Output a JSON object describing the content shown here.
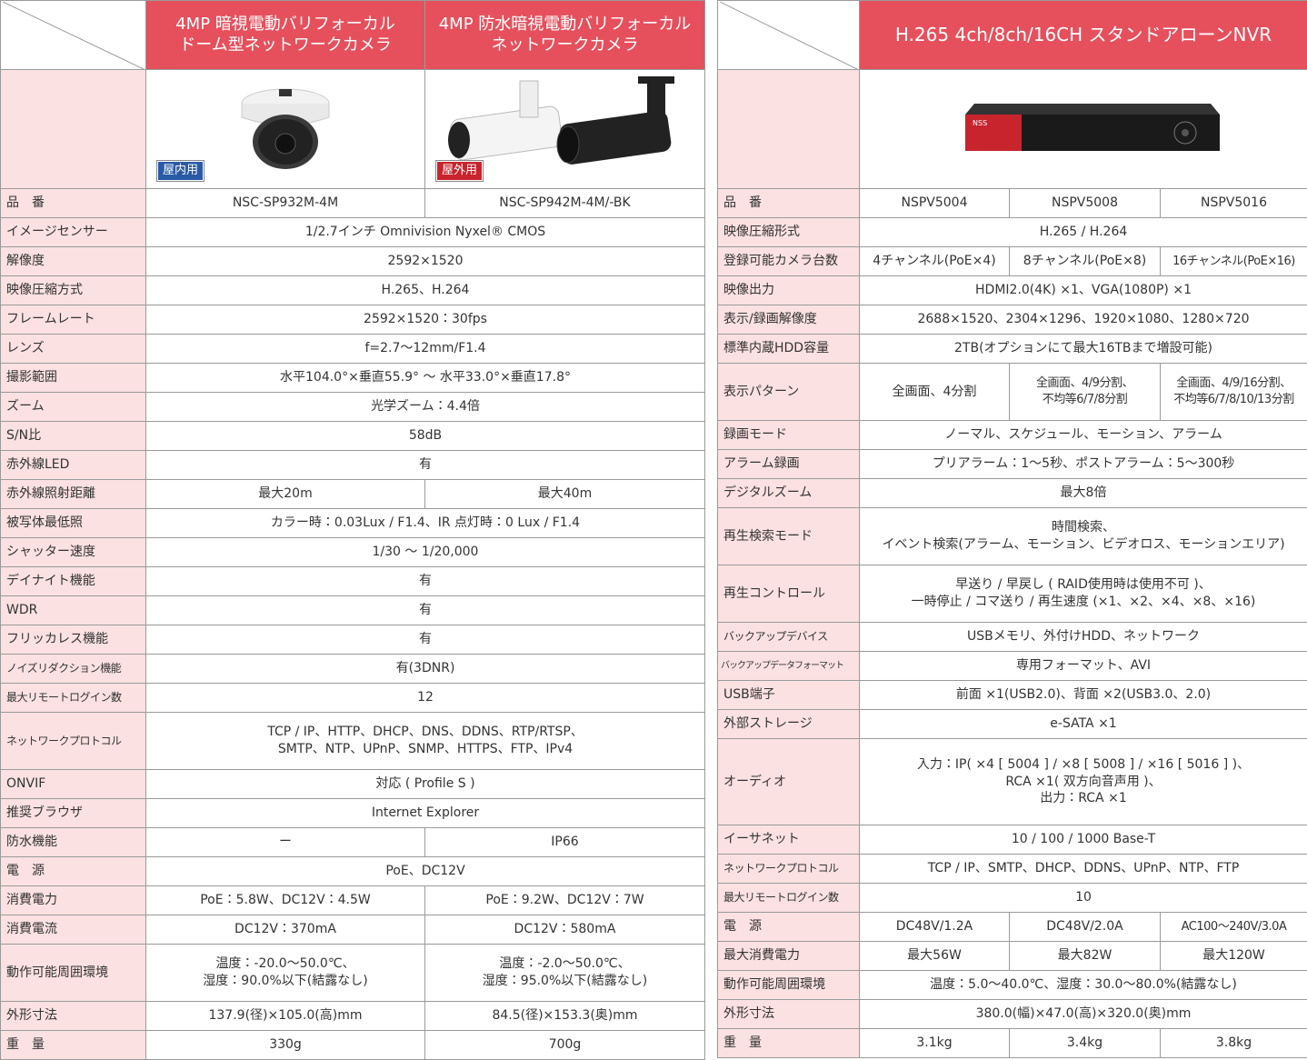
{
  "left_table": {
    "headers": [
      "4MP 暗視電動バリフォーカル\nドーム型ネットワークカメラ",
      "4MP 防水暗視電動バリフォーカル\nネットワークカメラ"
    ],
    "badges": [
      "屋内用",
      "屋外用"
    ],
    "rows": [
      {
        "label": "品　番",
        "cells": [
          "NSC-SP932M-4M",
          "NSC-SP942M-4M/-BK"
        ]
      },
      {
        "label": "イメージセンサー",
        "cells": [
          "1/2.7インチ Omnivision Nyxel® CMOS"
        ]
      },
      {
        "label": "解像度",
        "cells": [
          "2592×1520"
        ]
      },
      {
        "label": "映像圧縮方式",
        "cells": [
          "H.265、H.264"
        ]
      },
      {
        "label": "フレームレート",
        "cells": [
          "2592×1520：30fps"
        ]
      },
      {
        "label": "レンズ",
        "cells": [
          "f=2.7～12mm/F1.4"
        ]
      },
      {
        "label": "撮影範囲",
        "cells": [
          "水平104.0°×垂直55.9° ～ 水平33.0°×垂直17.8°"
        ]
      },
      {
        "label": "ズーム",
        "cells": [
          "光学ズーム：4.4倍"
        ]
      },
      {
        "label": "S/N比",
        "cells": [
          "58dB"
        ]
      },
      {
        "label": "赤外線LED",
        "cells": [
          "有"
        ]
      },
      {
        "label": "赤外線照射距離",
        "cells": [
          "最大20m",
          "最大40m"
        ]
      },
      {
        "label": "被写体最低照",
        "cells": [
          "カラー時：0.03Lux / F1.4、IR 点灯時：0 Lux / F1.4"
        ]
      },
      {
        "label": "シャッター速度",
        "cells": [
          "1/30 ～ 1/20,000"
        ]
      },
      {
        "label": "デイナイト機能",
        "cells": [
          "有"
        ]
      },
      {
        "label": "WDR",
        "cells": [
          "有"
        ]
      },
      {
        "label": "フリッカレス機能",
        "cells": [
          "有"
        ]
      },
      {
        "label": "ノイズリダクション機能",
        "cells": [
          "有(3DNR)"
        ]
      },
      {
        "label": "最大リモートログイン数",
        "cells": [
          "12"
        ]
      },
      {
        "label": "ネットワークプロトコル",
        "cells": [
          "TCP / IP、HTTP、DHCP、DNS、DDNS、RTP/RTSP、\nSMTP、NTP、UPnP、SNMP、HTTPS、FTP、IPv4"
        ]
      },
      {
        "label": "ONVIF",
        "cells": [
          "対応 ( Profile S )"
        ]
      },
      {
        "label": "推奨ブラウザ",
        "cells": [
          "Internet Explorer"
        ]
      },
      {
        "label": "防水機能",
        "cells": [
          "ー",
          "IP66"
        ]
      },
      {
        "label": "電　源",
        "cells": [
          "PoE、DC12V"
        ]
      },
      {
        "label": "消費電力",
        "cells": [
          "PoE：5.8W、DC12V：4.5W",
          "PoE：9.2W、DC12V：7W"
        ]
      },
      {
        "label": "消費電流",
        "cells": [
          "DC12V：370mA",
          "DC12V：580mA"
        ]
      },
      {
        "label": "動作可能周囲環境",
        "cells": [
          "温度：-20.0～50.0℃、\n湿度：90.0%以下(結露なし)",
          "温度：-2.0～50.0℃、\n湿度：95.0%以下(結露なし)"
        ]
      },
      {
        "label": "外形寸法",
        "cells": [
          "137.9(径)×105.0(高)mm",
          "84.5(径)×153.3(奥)mm"
        ]
      },
      {
        "label": "重　量",
        "cells": [
          "330g",
          "700g"
        ]
      }
    ]
  },
  "right_table": {
    "header": "H.265 4ch/8ch/16CH スタンドアローンNVR",
    "rows": [
      {
        "label": "品　番",
        "cells": [
          "NSPV5004",
          "NSPV5008",
          "NSPV5016"
        ]
      },
      {
        "label": "映像圧縮形式",
        "cells": [
          "H.265 / H.264"
        ]
      },
      {
        "label": "登録可能カメラ台数",
        "cells": [
          "4チャンネル(PoE×4)",
          "8チャンネル(PoE×8)",
          "16チャンネル(PoE×16)"
        ]
      },
      {
        "label": "映像出力",
        "cells": [
          "HDMI2.0(4K) ×1、VGA(1080P) ×1"
        ]
      },
      {
        "label": "表示/録画解像度",
        "cells": [
          "2688×1520、2304×1296、1920×1080、1280×720"
        ]
      },
      {
        "label": "標準内蔵HDD容量",
        "cells": [
          "2TB(オプションにて最大16TBまで増設可能)"
        ]
      },
      {
        "label": "表示パターン",
        "cells": [
          "全画面、4分割",
          "全画面、4/9分割、\n不均等6/7/8分割",
          "全画面、4/9/16分割、\n不均等6/7/8/10/13分割"
        ]
      },
      {
        "label": "録画モード",
        "cells": [
          "ノーマル、スケジュール、モーション、アラーム"
        ]
      },
      {
        "label": "アラーム録画",
        "cells": [
          "プリアラーム：1～5秒、ポストアラーム：5～300秒"
        ]
      },
      {
        "label": "デジタルズーム",
        "cells": [
          "最大8倍"
        ]
      },
      {
        "label": "再生検索モード",
        "cells": [
          "時間検索、\nイベント検索(アラーム、モーション、ビデオロス、モーションエリア)"
        ]
      },
      {
        "label": "再生コントロール",
        "cells": [
          "早送り / 早戻し ( RAID使用時は使用不可 )、\n一時停止 / コマ送り / 再生速度 (×1、×2、×4、×8、×16)"
        ]
      },
      {
        "label": "バックアップデバイス",
        "cells": [
          "USBメモリ、外付けHDD、ネットワーク"
        ]
      },
      {
        "label": "バックアップデータフォーマット",
        "cells": [
          "専用フォーマット、AVI"
        ]
      },
      {
        "label": "USB端子",
        "cells": [
          "前面 ×1(USB2.0)、背面 ×2(USB3.0、2.0)"
        ]
      },
      {
        "label": "外部ストレージ",
        "cells": [
          "e-SATA ×1"
        ]
      },
      {
        "label": "オーディオ",
        "cells": [
          "入力：IP( ×4 [ 5004 ] / ×8 [ 5008 ] / ×16 [ 5016 ] )、\nRCA ×1( 双方向音声用 )、\n出力：RCA ×1"
        ]
      },
      {
        "label": "イーサネット",
        "cells": [
          "10 / 100 / 1000 Base-T"
        ]
      },
      {
        "label": "ネットワークプロトコル",
        "cells": [
          "TCP / IP、SMTP、DHCP、DDNS、UPnP、NTP、FTP"
        ]
      },
      {
        "label": "最大リモートログイン数",
        "cells": [
          "10"
        ]
      },
      {
        "label": "電　源",
        "cells": [
          "DC48V/1.2A",
          "DC48V/2.0A",
          "AC100～240V/3.0A"
        ]
      },
      {
        "label": "最大消費電力",
        "cells": [
          "最大56W",
          "最大82W",
          "最大120W"
        ]
      },
      {
        "label": "動作可能周囲環境",
        "cells": [
          "温度：5.0～40.0℃、湿度：30.0～80.0%(結露なし)"
        ]
      },
      {
        "label": "外形寸法",
        "cells": [
          "380.0(幅)×47.0(高)×320.0(奥)mm"
        ]
      },
      {
        "label": "重　量",
        "cells": [
          "3.1kg",
          "3.4kg",
          "3.8kg"
        ]
      }
    ]
  }
}
